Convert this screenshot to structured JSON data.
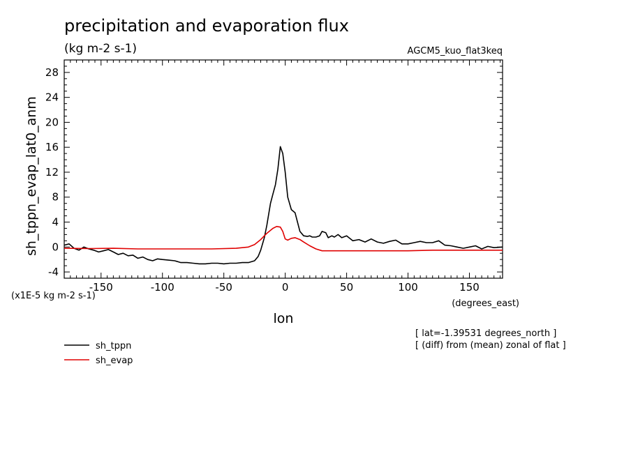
{
  "chart_data": {
    "type": "line",
    "title": "precipitation and evaporation flux",
    "units_label": "(kg m-2 s-1)",
    "model_label": "AGCM5_kuo_flat3keq",
    "ylabel": "sh_tppn_evap_lat0_anm",
    "xlabel": "lon",
    "x_units": "(degrees_east)",
    "y_scale_note": "(x1E-5 kg m-2 s-1)",
    "notes": [
      "[ lat=-1.39531 degrees_north ]",
      "[ (diff) from (mean) zonal of flat ]"
    ],
    "xlim": [
      -180,
      177
    ],
    "ylim": [
      -5,
      30
    ],
    "x_ticks": [
      -150,
      -100,
      -50,
      0,
      50,
      100,
      150
    ],
    "x_tick_labels": [
      "-150",
      "-100",
      "-50",
      "0",
      "50",
      "100",
      "150"
    ],
    "y_ticks": [
      -4,
      0,
      4,
      8,
      12,
      16,
      20,
      24,
      28
    ],
    "y_tick_labels": [
      "-4",
      "0",
      "4",
      "8",
      "12",
      "16",
      "20",
      "24",
      "28"
    ],
    "legend_position": "bottom-left",
    "series": [
      {
        "name": "sh_tppn",
        "color": "#000000",
        "x": [
          -180,
          -176,
          -172,
          -168,
          -164,
          -160,
          -156,
          -152,
          -148,
          -144,
          -140,
          -136,
          -132,
          -128,
          -124,
          -120,
          -116,
          -112,
          -108,
          -104,
          -100,
          -95,
          -90,
          -85,
          -80,
          -75,
          -70,
          -65,
          -60,
          -55,
          -50,
          -45,
          -40,
          -35,
          -30,
          -25,
          -22,
          -20,
          -17,
          -15,
          -12,
          -10,
          -8,
          -6,
          -4,
          -2,
          0,
          2,
          5,
          8,
          10,
          12,
          15,
          18,
          20,
          22,
          25,
          28,
          30,
          33,
          35,
          38,
          40,
          43,
          46,
          50,
          55,
          60,
          65,
          70,
          75,
          80,
          85,
          90,
          95,
          100,
          105,
          110,
          115,
          120,
          125,
          130,
          135,
          140,
          145,
          150,
          155,
          160,
          165,
          170,
          177
        ],
        "y": [
          0.3,
          0.5,
          -0.2,
          -0.5,
          0.0,
          -0.3,
          -0.5,
          -0.8,
          -0.6,
          -0.4,
          -0.8,
          -1.2,
          -1.0,
          -1.4,
          -1.3,
          -1.8,
          -1.6,
          -2.0,
          -2.2,
          -1.9,
          -2.0,
          -2.1,
          -2.2,
          -2.5,
          -2.5,
          -2.6,
          -2.7,
          -2.7,
          -2.6,
          -2.6,
          -2.7,
          -2.6,
          -2.6,
          -2.5,
          -2.5,
          -2.2,
          -1.5,
          -0.5,
          1.5,
          3.5,
          7.0,
          8.5,
          10.0,
          12.5,
          16.1,
          15.0,
          12.0,
          8.0,
          6.0,
          5.5,
          4.0,
          2.5,
          1.8,
          1.7,
          1.8,
          1.6,
          1.6,
          1.8,
          2.5,
          2.3,
          1.5,
          1.8,
          1.6,
          2.0,
          1.5,
          1.8,
          1.0,
          1.2,
          0.8,
          1.3,
          0.8,
          0.6,
          0.9,
          1.1,
          0.5,
          0.5,
          0.7,
          0.9,
          0.7,
          0.7,
          1.0,
          0.3,
          0.2,
          0.0,
          -0.2,
          0.0,
          0.2,
          -0.3,
          0.1,
          -0.1,
          0.0
        ]
      },
      {
        "name": "sh_evap",
        "color": "#e00000",
        "x": [
          -180,
          -160,
          -140,
          -120,
          -100,
          -80,
          -60,
          -40,
          -30,
          -25,
          -20,
          -15,
          -10,
          -7,
          -4,
          -2,
          0,
          2,
          5,
          8,
          12,
          15,
          20,
          25,
          30,
          40,
          60,
          80,
          100,
          120,
          140,
          160,
          177
        ],
        "y": [
          -0.2,
          -0.25,
          -0.2,
          -0.3,
          -0.3,
          -0.3,
          -0.3,
          -0.2,
          0.0,
          0.4,
          1.2,
          2.2,
          3.0,
          3.3,
          3.2,
          2.5,
          1.3,
          1.1,
          1.4,
          1.5,
          1.2,
          0.8,
          0.2,
          -0.3,
          -0.6,
          -0.6,
          -0.6,
          -0.6,
          -0.6,
          -0.5,
          -0.5,
          -0.5,
          -0.5
        ]
      }
    ]
  }
}
